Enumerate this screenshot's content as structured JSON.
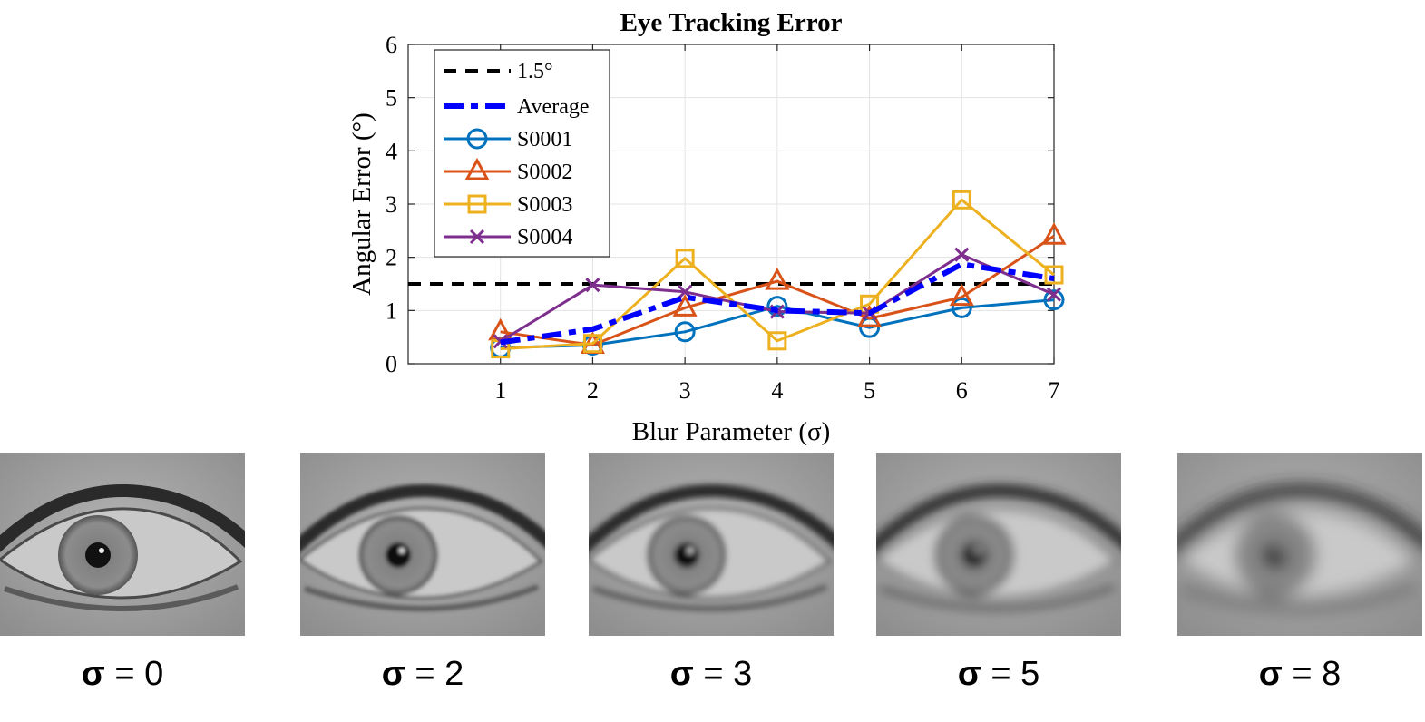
{
  "chart_data": {
    "type": "line",
    "title": "Eye Tracking Error",
    "xlabel": "Blur Parameter (σ)",
    "ylabel": "Angular Error (°)",
    "x": [
      1,
      2,
      3,
      4,
      5,
      6,
      7
    ],
    "xlim": [
      0,
      7
    ],
    "ylim": [
      0,
      6
    ],
    "xticks": [
      "1",
      "2",
      "3",
      "4",
      "5",
      "6",
      "7"
    ],
    "yticks": [
      "0",
      "1",
      "2",
      "3",
      "4",
      "5",
      "6"
    ],
    "grid": true,
    "legend_position": "top-left",
    "threshold": {
      "name": "1.5°",
      "value": 1.5,
      "color": "#000000",
      "style": "dashed"
    },
    "series": [
      {
        "name": "Average",
        "color": "#0000ff",
        "marker": "none",
        "style": "dashdot",
        "values": [
          0.4,
          0.65,
          1.25,
          1.0,
          0.95,
          1.87,
          1.6
        ]
      },
      {
        "name": "S0001",
        "color": "#0072bd",
        "marker": "circle",
        "style": "solid",
        "values": [
          0.3,
          0.35,
          0.6,
          1.08,
          0.68,
          1.05,
          1.2
        ]
      },
      {
        "name": "S0002",
        "color": "#d95319",
        "marker": "triangle",
        "style": "solid",
        "values": [
          0.6,
          0.35,
          1.05,
          1.55,
          0.85,
          1.25,
          2.4
        ]
      },
      {
        "name": "S0003",
        "color": "#edb120",
        "marker": "square",
        "style": "solid",
        "values": [
          0.28,
          0.38,
          1.98,
          0.43,
          1.12,
          3.08,
          1.67
        ]
      },
      {
        "name": "S0004",
        "color": "#7e2f8e",
        "marker": "x",
        "style": "solid",
        "values": [
          0.42,
          1.48,
          1.35,
          0.98,
          0.95,
          2.05,
          1.3
        ]
      }
    ]
  },
  "panels": [
    {
      "sigma_symbol": "σ",
      "label": " = 0",
      "blur": 0
    },
    {
      "sigma_symbol": "σ",
      "label": " = 2",
      "blur": 2
    },
    {
      "sigma_symbol": "σ",
      "label": " = 3",
      "blur": 3
    },
    {
      "sigma_symbol": "σ",
      "label": " = 5",
      "blur": 5
    },
    {
      "sigma_symbol": "σ",
      "label": " = 8",
      "blur": 8
    }
  ]
}
